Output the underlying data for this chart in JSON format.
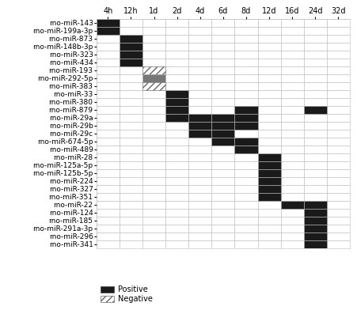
{
  "col_labels": [
    "4h",
    "12h",
    "1d",
    "2d",
    "4d",
    "6d",
    "8d",
    "12d",
    "16d",
    "24d",
    "32d"
  ],
  "row_labels": [
    "rno-miR-143",
    "rno-miR-199a-3p",
    "rno-miR-873",
    "rno-miR-148b-3p",
    "rno-miR-323",
    "rno-miR-434",
    "rno-miR-193",
    "rno-miR-292-5p",
    "rno-miR-383",
    "rno-miR-33",
    "rno-miR-380",
    "rno-miR-879",
    "rno-miR-29a",
    "rno-miR-29b",
    "rno-miR-29c",
    "rno-miR-674-5p",
    "rno-miR-489",
    "rno-miR-28",
    "rno-miR-125a-5p",
    "rno-miR-125b-5p",
    "rno-miR-224",
    "rno-miR-327",
    "rno-miR-351",
    "rno-miR-22",
    "rno-miR-124",
    "rno-miR-185",
    "rno-miR-291a-3p",
    "rno-miR-296",
    "rno-miR-341"
  ],
  "cells": [
    {
      "row": 0,
      "col": 0,
      "type": "positive"
    },
    {
      "row": 1,
      "col": 0,
      "type": "positive"
    },
    {
      "row": 2,
      "col": 1,
      "type": "positive"
    },
    {
      "row": 3,
      "col": 1,
      "type": "positive"
    },
    {
      "row": 4,
      "col": 1,
      "type": "positive"
    },
    {
      "row": 5,
      "col": 1,
      "type": "positive"
    },
    {
      "row": 6,
      "col": 2,
      "type": "negative"
    },
    {
      "row": 7,
      "col": 2,
      "type": "gray"
    },
    {
      "row": 8,
      "col": 2,
      "type": "negative"
    },
    {
      "row": 9,
      "col": 3,
      "type": "positive"
    },
    {
      "row": 10,
      "col": 3,
      "type": "positive"
    },
    {
      "row": 11,
      "col": 3,
      "type": "positive"
    },
    {
      "row": 11,
      "col": 6,
      "type": "positive"
    },
    {
      "row": 11,
      "col": 9,
      "type": "positive"
    },
    {
      "row": 12,
      "col": 3,
      "type": "positive"
    },
    {
      "row": 12,
      "col": 4,
      "type": "positive"
    },
    {
      "row": 12,
      "col": 5,
      "type": "positive"
    },
    {
      "row": 12,
      "col": 6,
      "type": "positive"
    },
    {
      "row": 13,
      "col": 4,
      "type": "positive"
    },
    {
      "row": 13,
      "col": 5,
      "type": "positive"
    },
    {
      "row": 13,
      "col": 6,
      "type": "positive"
    },
    {
      "row": 14,
      "col": 4,
      "type": "positive"
    },
    {
      "row": 14,
      "col": 5,
      "type": "positive"
    },
    {
      "row": 15,
      "col": 5,
      "type": "positive"
    },
    {
      "row": 15,
      "col": 6,
      "type": "positive"
    },
    {
      "row": 16,
      "col": 6,
      "type": "positive"
    },
    {
      "row": 17,
      "col": 7,
      "type": "positive"
    },
    {
      "row": 18,
      "col": 7,
      "type": "positive"
    },
    {
      "row": 19,
      "col": 7,
      "type": "positive"
    },
    {
      "row": 20,
      "col": 7,
      "type": "positive"
    },
    {
      "row": 21,
      "col": 7,
      "type": "positive"
    },
    {
      "row": 22,
      "col": 7,
      "type": "positive"
    },
    {
      "row": 23,
      "col": 8,
      "type": "positive"
    },
    {
      "row": 23,
      "col": 9,
      "type": "positive"
    },
    {
      "row": 24,
      "col": 9,
      "type": "positive"
    },
    {
      "row": 25,
      "col": 9,
      "type": "positive"
    },
    {
      "row": 26,
      "col": 9,
      "type": "positive"
    },
    {
      "row": 27,
      "col": 9,
      "type": "positive"
    },
    {
      "row": 28,
      "col": 9,
      "type": "positive"
    }
  ],
  "positive_color": "#1a1a1a",
  "gray_color": "#777777",
  "hatch_pattern": "////",
  "background_color": "#ffffff",
  "grid_color": "#bbbbbb",
  "row_label_fontsize": 6.5,
  "col_label_fontsize": 7.0,
  "legend_fontsize": 7.0
}
